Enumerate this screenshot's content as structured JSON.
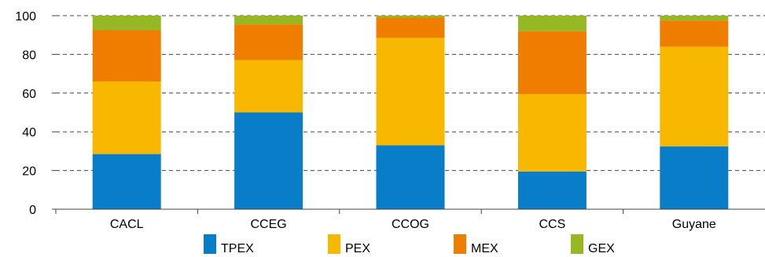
{
  "chart_data": {
    "type": "bar",
    "stacked": true,
    "categories": [
      "CACL",
      "CCEG",
      "CCOG",
      "CCS",
      "Guyane"
    ],
    "series": [
      {
        "name": "TPEX",
        "color": "#0a7dc8",
        "values": [
          28.5,
          50,
          33,
          19.5,
          32.5
        ]
      },
      {
        "name": "PEX",
        "color": "#f9b800",
        "values": [
          37.5,
          27,
          55.5,
          40,
          51.5
        ]
      },
      {
        "name": "MEX",
        "color": "#ef7d00",
        "values": [
          26.5,
          18.5,
          10.5,
          32.5,
          13.5
        ]
      },
      {
        "name": "GEX",
        "color": "#95b824",
        "values": [
          7.5,
          4.5,
          1,
          8,
          2.5
        ]
      }
    ],
    "yticks": [
      0,
      20,
      40,
      60,
      80,
      100
    ],
    "ylim": [
      0,
      100
    ],
    "grid": true,
    "legend_position": "bottom"
  }
}
